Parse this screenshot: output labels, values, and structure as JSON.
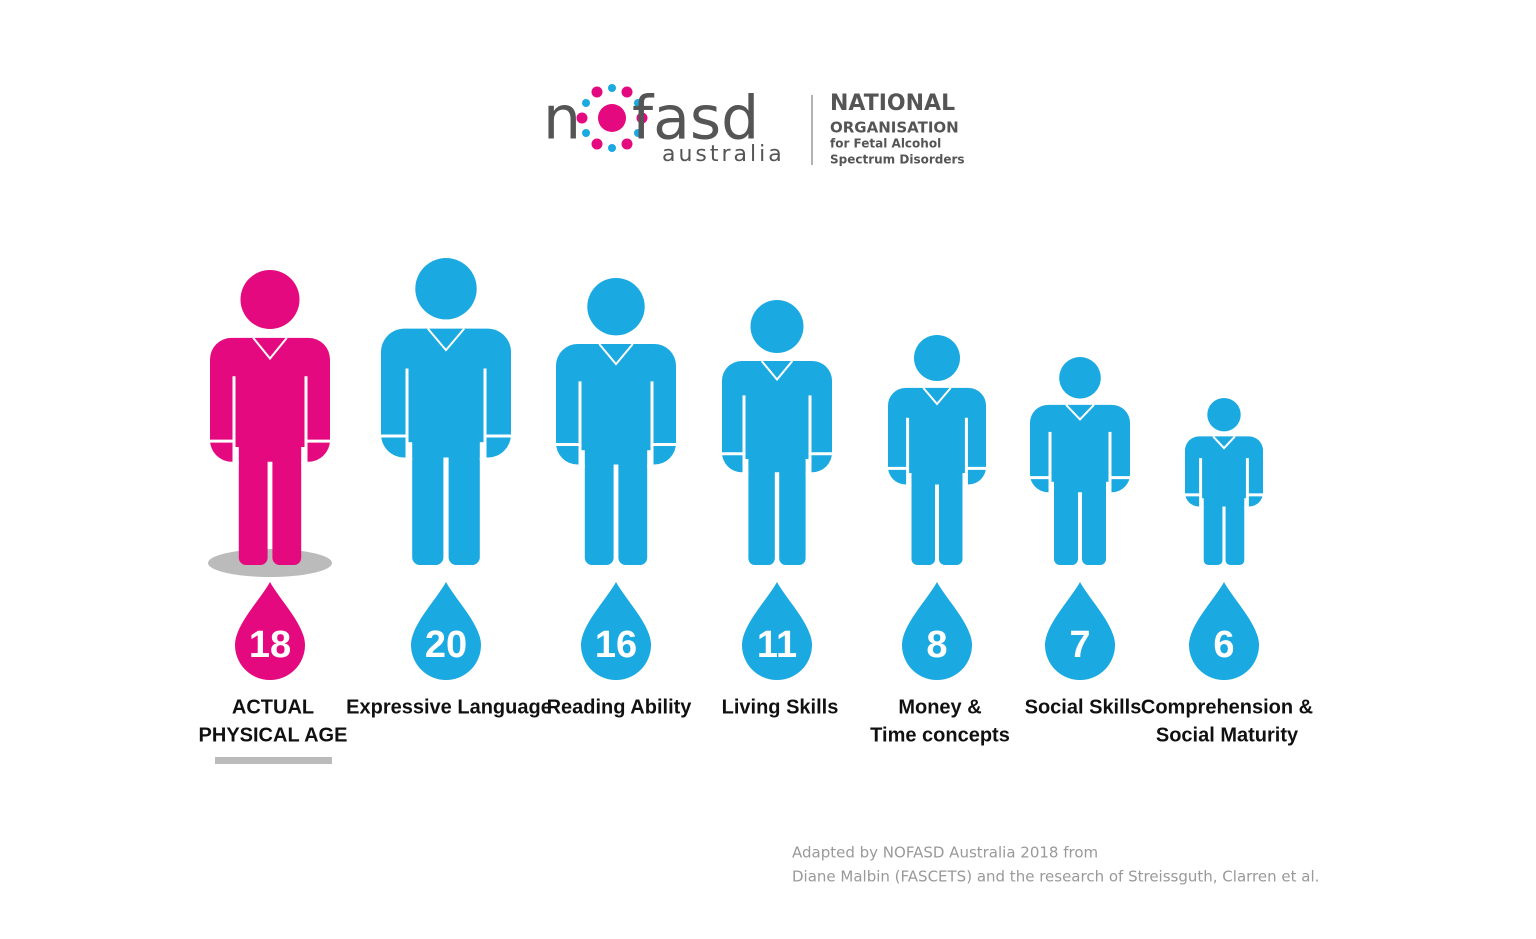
{
  "logo": {
    "brand_left": "n",
    "brand_right": "fasd",
    "sub": "australia",
    "org": [
      "NATIONAL",
      "ORGANISATION",
      "for Fetal Alcohol",
      "Spectrum Disorders"
    ]
  },
  "figures": [
    {
      "age": 18,
      "label": [
        "ACTUAL",
        "PHYSICAL AGE"
      ]
    },
    {
      "age": 20,
      "label": [
        "Expressive Language"
      ]
    },
    {
      "age": 16,
      "label": [
        "Reading Ability"
      ]
    },
    {
      "age": 11,
      "label": [
        "Living Skills"
      ]
    },
    {
      "age": 8,
      "label": [
        "Money &",
        "Time concepts"
      ]
    },
    {
      "age": 7,
      "label": [
        "Social Skills"
      ]
    },
    {
      "age": 6,
      "label": [
        "Comprehension &",
        "Social Maturity"
      ]
    }
  ],
  "credit": [
    "Adapted by NOFASD Australia 2018 from",
    "Diane Malbin (FASCETS) and the research of Streissguth, Clarren et al."
  ]
}
